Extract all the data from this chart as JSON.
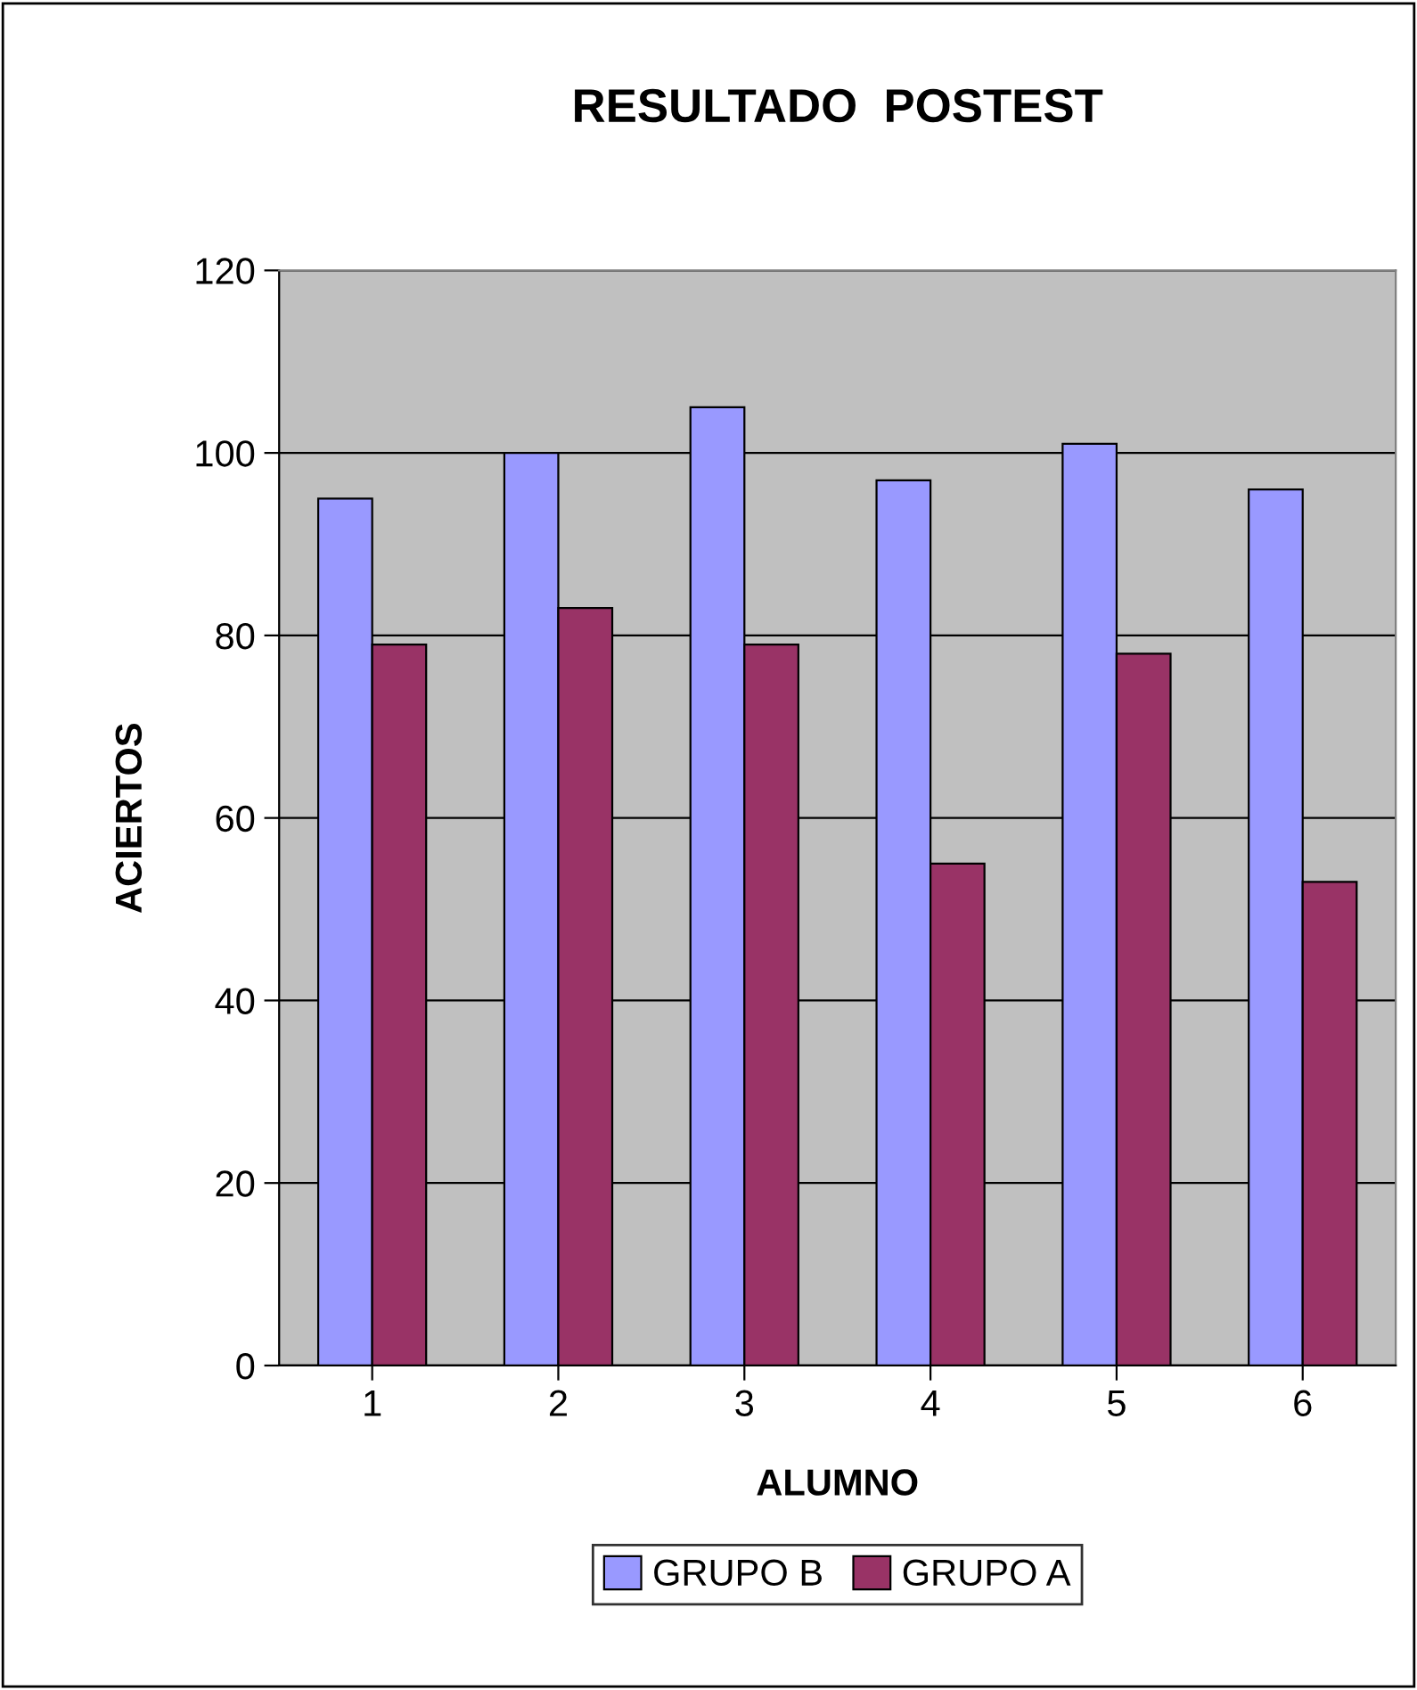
{
  "chart_data": {
    "type": "bar",
    "title": "RESULTADO  POSTEST",
    "xlabel": "ALUMNO",
    "ylabel": "ACIERTOS",
    "categories": [
      "1",
      "2",
      "3",
      "4",
      "5",
      "6"
    ],
    "series": [
      {
        "name": "GRUPO B",
        "color": "#9999ff",
        "values": [
          95,
          100,
          105,
          97,
          101,
          96
        ]
      },
      {
        "name": "GRUPO A",
        "color": "#993366",
        "values": [
          79,
          83,
          79,
          55,
          78,
          53
        ]
      }
    ],
    "ylim": [
      0,
      120
    ],
    "yticks": [
      0,
      20,
      40,
      60,
      80,
      100,
      120
    ],
    "grid": "y",
    "legend": "bottom"
  }
}
